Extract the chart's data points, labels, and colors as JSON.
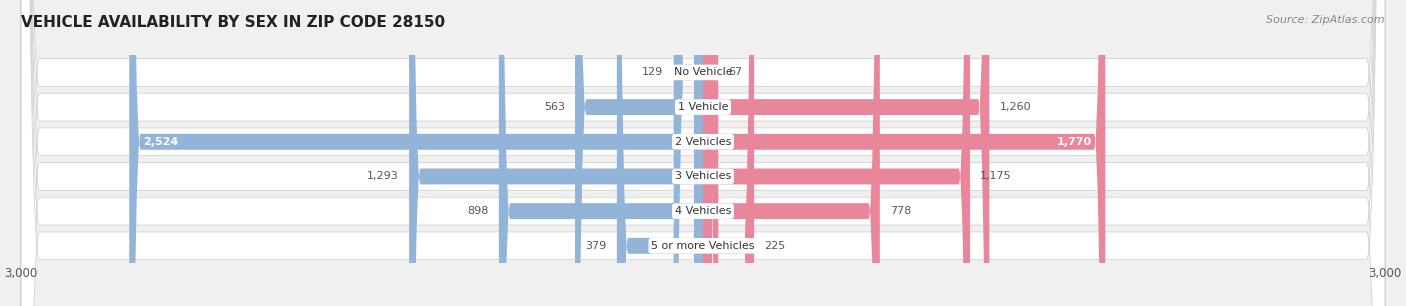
{
  "title": "VEHICLE AVAILABILITY BY SEX IN ZIP CODE 28150",
  "source": "Source: ZipAtlas.com",
  "categories": [
    "No Vehicle",
    "1 Vehicle",
    "2 Vehicles",
    "3 Vehicles",
    "4 Vehicles",
    "5 or more Vehicles"
  ],
  "male_values": [
    129,
    563,
    2524,
    1293,
    898,
    379
  ],
  "female_values": [
    67,
    1260,
    1770,
    1175,
    778,
    225
  ],
  "male_color": "#92b4d8",
  "female_color": "#e8879c",
  "axis_max": 3000,
  "background_color": "#f0f0f0",
  "row_bg_color": "#ffffff",
  "row_border_color": "#cccccc",
  "title_fontsize": 11,
  "label_fontsize": 8,
  "value_fontsize": 8,
  "tick_fontsize": 8.5,
  "legend_fontsize": 9
}
